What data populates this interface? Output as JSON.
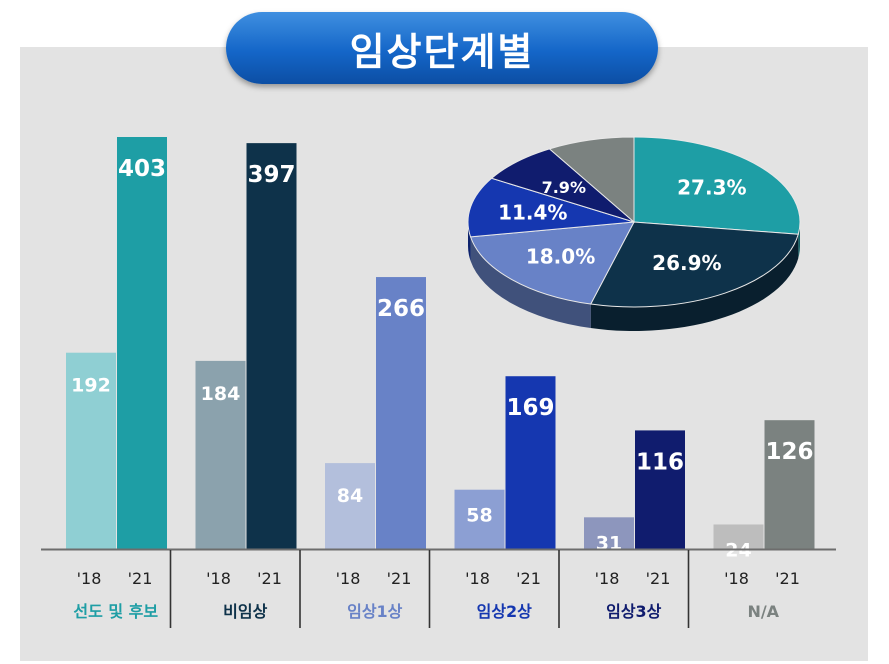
{
  "title": "임상단계별",
  "chart_data": [
    {
      "type": "bar",
      "title": "임상단계별",
      "categories": [
        "선도 및 후보",
        "비임상",
        "임상1상",
        "임상2상",
        "임상3상",
        "N/A"
      ],
      "year_labels": [
        "'18",
        "'21"
      ],
      "series": [
        {
          "name": "'18",
          "values": [
            192,
            184,
            84,
            58,
            31,
            24
          ]
        },
        {
          "name": "'21",
          "values": [
            403,
            397,
            266,
            169,
            116,
            126
          ]
        }
      ],
      "colors_18": [
        "#8fcfd3",
        "#8ba2ad",
        "#b3bfdc",
        "#8c9fd3",
        "#8d96bd",
        "#bdbdbd"
      ],
      "colors_21": [
        "#1e9ea5",
        "#0e324a",
        "#6882c7",
        "#1537b0",
        "#101c6e",
        "#7b8280"
      ],
      "category_label_colors": [
        "#1e9ea5",
        "#0e324a",
        "#6882c7",
        "#1537b0",
        "#101c6e",
        "#7b8280"
      ],
      "ylim": [
        0,
        420
      ],
      "grid": false
    },
    {
      "type": "pie",
      "labels": [
        "27.3%",
        "26.9%",
        "18.0%",
        "11.4%",
        "7.9%",
        ""
      ],
      "values": [
        27.3,
        26.9,
        18.0,
        11.4,
        7.9,
        8.5
      ],
      "colors": [
        "#1e9ea5",
        "#0e324a",
        "#6882c7",
        "#1537b0",
        "#101c6e",
        "#7b8280"
      ]
    }
  ]
}
